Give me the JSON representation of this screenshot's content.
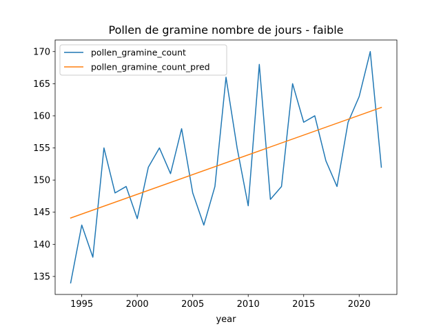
{
  "chart_data": {
    "type": "line",
    "title": "Pollen de gramine nombre de jours - faible",
    "xlabel": "year",
    "ylabel": "",
    "xlim": [
      1992.6,
      2023.4
    ],
    "ylim": [
      132.2,
      171.8
    ],
    "xticks": [
      1995,
      2000,
      2005,
      2010,
      2015,
      2020
    ],
    "yticks": [
      135,
      140,
      145,
      150,
      155,
      160,
      165,
      170
    ],
    "grid": false,
    "legend_position": "upper-left",
    "series": [
      {
        "name": "pollen_gramine_count",
        "color": "#1f77b4",
        "x": [
          1994,
          1995,
          1996,
          1997,
          1998,
          1999,
          2000,
          2001,
          2002,
          2003,
          2004,
          2005,
          2006,
          2007,
          2008,
          2009,
          2010,
          2011,
          2012,
          2013,
          2014,
          2015,
          2016,
          2017,
          2018,
          2019,
          2020,
          2021,
          2022
        ],
        "y": [
          134,
          143,
          138,
          155,
          148,
          149,
          144,
          152,
          155,
          151,
          158,
          148,
          143,
          149,
          166,
          155,
          146,
          168,
          147,
          149,
          165,
          159,
          160,
          153,
          149,
          159,
          163,
          170,
          152
        ]
      },
      {
        "name": "pollen_gramine_count_pred",
        "color": "#ff7f0e",
        "x": [
          1994,
          2022
        ],
        "y": [
          144.1,
          161.3
        ]
      }
    ]
  }
}
